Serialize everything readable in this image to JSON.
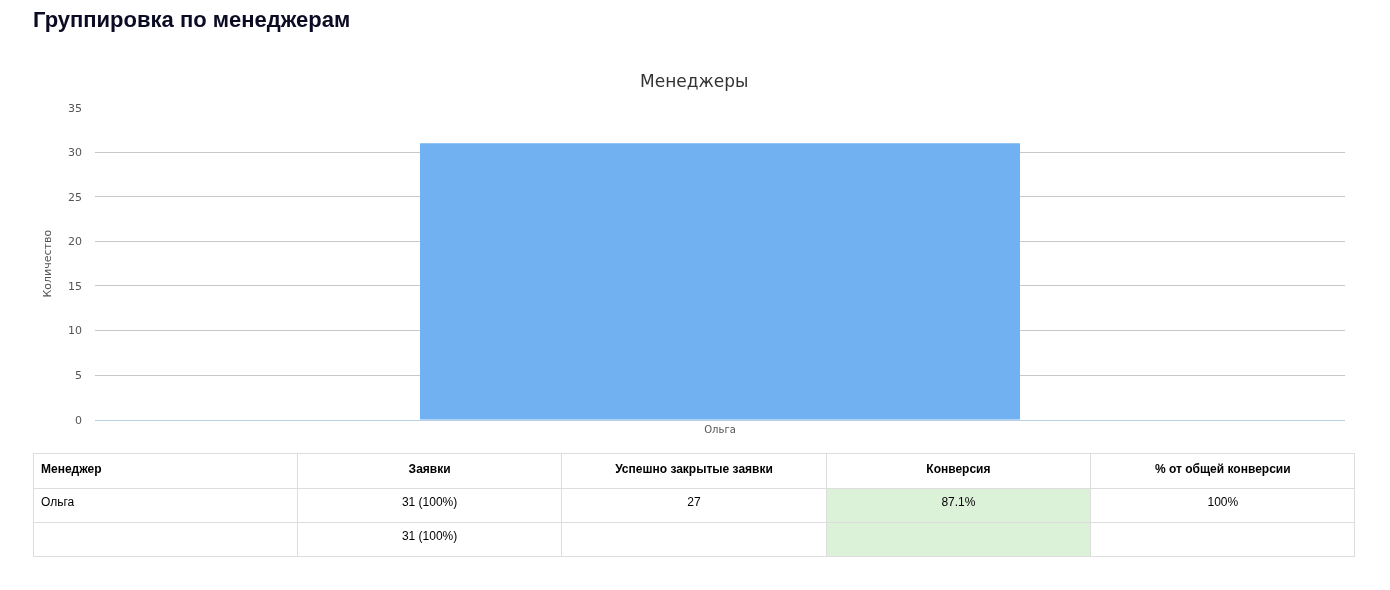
{
  "chart_data": [
    {
      "type": "bar",
      "title": "Группировка по менеджерам",
      "subtitle": "Менеджеры",
      "ylabel": "Количество",
      "categories": [
        "Ольга"
      ],
      "values": [
        31
      ],
      "color": "#71b1f1",
      "ylim": [
        0,
        35
      ],
      "yticks": [
        0,
        5,
        10,
        15,
        20,
        25,
        30,
        35
      ],
      "grid": "y"
    },
    {
      "type": "other",
      "categories": [
        "Менеджер",
        "Заявки",
        "Успешно закрытые заявки",
        "Конверсия",
        "% от общей конверсии"
      ],
      "cell_labels": [
        [
          "Ольга",
          "31 (100%)",
          "27",
          "87.1%",
          "100%"
        ],
        [
          null,
          "31 (100%)",
          null,
          null,
          null
        ]
      ],
      "colors": [
        [
          null,
          null,
          null,
          "#dbf1d8",
          null
        ],
        [
          null,
          null,
          null,
          "#dbf1d8",
          null
        ]
      ]
    }
  ]
}
